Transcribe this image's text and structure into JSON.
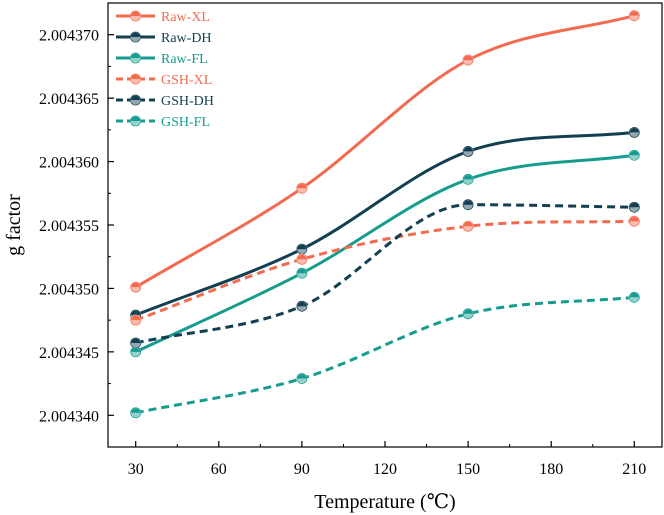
{
  "chart_data": {
    "type": "line",
    "title": "",
    "xlabel": "Temperature (℃)",
    "ylabel": "g factor",
    "xlim": [
      20,
      220
    ],
    "ylim": [
      2.0043375,
      2.0043725
    ],
    "x": [
      30,
      90,
      150,
      210
    ],
    "xticks": [
      30,
      60,
      90,
      120,
      150,
      180,
      210
    ],
    "xtick_labels": [
      "30",
      "60",
      "90",
      "120",
      "150",
      "180",
      "210"
    ],
    "yticks": [
      2.00434,
      2.004345,
      2.00435,
      2.004355,
      2.00436,
      2.004365,
      2.00437
    ],
    "ytick_labels": [
      "2.004340",
      "2.004345",
      "2.004350",
      "2.004355",
      "2.004360",
      "2.004365",
      "2.004370"
    ],
    "grid": false,
    "legend_position": "top-left",
    "series": [
      {
        "name": "Raw-XL",
        "color": "#F26B4E",
        "dashed": false,
        "values": [
          2.0043501,
          2.0043579,
          2.004368,
          2.0043715
        ]
      },
      {
        "name": "Raw-DH",
        "color": "#123F52",
        "dashed": false,
        "values": [
          2.0043479,
          2.0043531,
          2.0043608,
          2.0043623
        ]
      },
      {
        "name": "Raw-FL",
        "color": "#169C8E",
        "dashed": false,
        "values": [
          2.004345,
          2.0043512,
          2.0043586,
          2.0043605
        ]
      },
      {
        "name": "GSH-XL",
        "color": "#F26B4E",
        "dashed": true,
        "values": [
          2.0043475,
          2.0043523,
          2.0043549,
          2.0043553
        ]
      },
      {
        "name": "GSH-DH",
        "color": "#123F52",
        "dashed": true,
        "values": [
          2.0043457,
          2.0043486,
          2.0043566,
          2.0043564
        ]
      },
      {
        "name": "GSH-FL",
        "color": "#169C8E",
        "dashed": true,
        "values": [
          2.0043402,
          2.0043429,
          2.004348,
          2.0043493
        ]
      }
    ]
  }
}
